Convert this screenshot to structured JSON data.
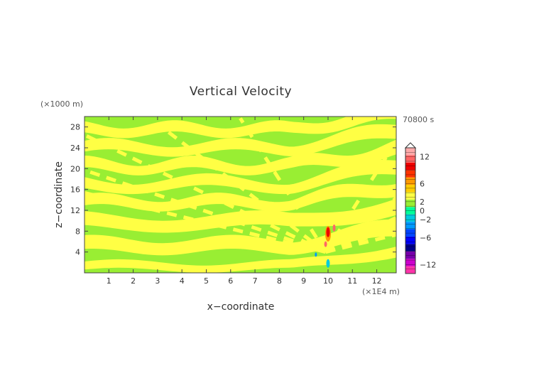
{
  "chart_data": {
    "type": "heatmap",
    "title": "Vertical Velocity",
    "xlabel": "x−coordinate",
    "ylabel": "z−coordinate",
    "x_unit": "(×1E4 m)",
    "y_unit": "(×1000 m)",
    "time_label": "70800 s",
    "xlim": [
      0,
      12.8
    ],
    "ylim": [
      0,
      30
    ],
    "x_ticks": [
      "1",
      "2",
      "3",
      "4",
      "5",
      "6",
      "7",
      "8",
      "9",
      "10",
      "11",
      "12"
    ],
    "y_ticks": [
      "4",
      "8",
      "12",
      "16",
      "20",
      "24",
      "28"
    ],
    "colorbar": {
      "ticks": [
        "12",
        "6",
        "2",
        "0",
        "−2",
        "−6",
        "−12"
      ],
      "range": [
        -14,
        14
      ],
      "extend": "max",
      "colors": [
        "#ff33aa",
        "#cc00cc",
        "#7700aa",
        "#000088",
        "#0000ff",
        "#0044ff",
        "#0099ff",
        "#00ccdd",
        "#00ff99",
        "#99ee33",
        "#ffff44",
        "#ffcc00",
        "#ff9900",
        "#ff3300",
        "#ee0000",
        "#ff6666",
        "#ffaaaa"
      ]
    },
    "field": {
      "background_band": "#99ee33",
      "dominant_values": [
        -0.5,
        0.5
      ],
      "extreme_region": {
        "x": 10,
        "z": [
          5,
          10
        ],
        "max": 8,
        "min": -2
      }
    }
  }
}
